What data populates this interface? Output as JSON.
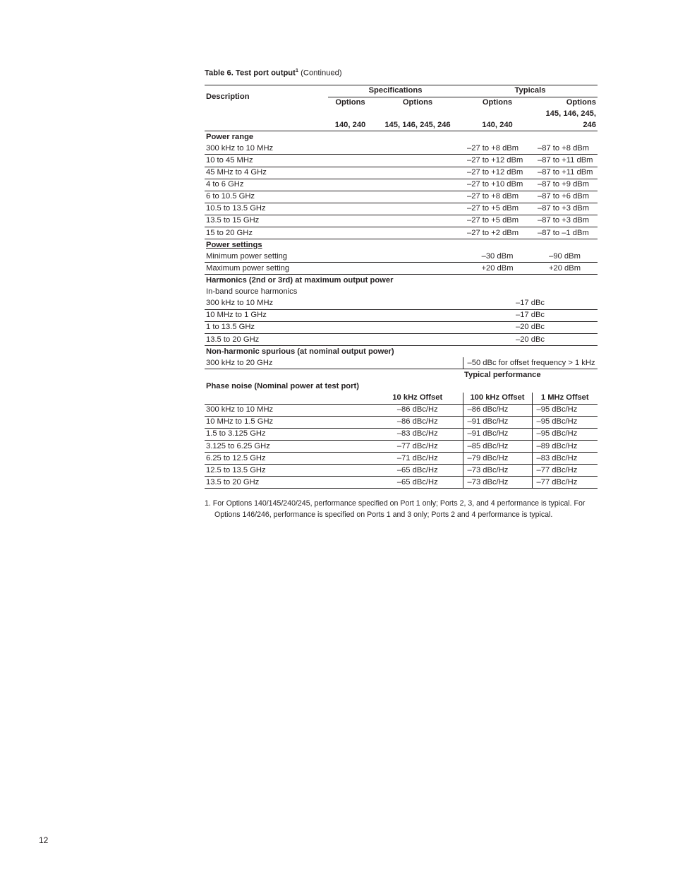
{
  "table_title_prefix": "Table 6. Test port output",
  "table_title_sup": "1",
  "table_title_suffix": " (Continued)",
  "hdr_description": "Description",
  "hdr_specifications": "Specifications",
  "hdr_typicals": "Typicals",
  "hdr_options": "Options",
  "hdr_140_240": "140, 240",
  "hdr_145etc": "145, 146, 245, 246",
  "power_range": "Power range",
  "pr_rows": [
    {
      "label": "300 kHz to 10 MHz",
      "t1": "–27 to +8 dBm",
      "t2": "–87 to +8 dBm"
    },
    {
      "label": "10 to 45 MHz",
      "t1": "–27 to +12 dBm",
      "t2": "–87 to +11 dBm"
    },
    {
      "label": "45 MHz to 4 GHz",
      "t1": "–27 to +12 dBm",
      "t2": "–87 to +11 dBm"
    },
    {
      "label": "4 to 6 GHz",
      "t1": "–27 to +10 dBm",
      "t2": "–87 to +9 dBm"
    },
    {
      "label": "6 to 10.5 GHz",
      "t1": "–27 to +8 dBm",
      "t2": "–87 to +6 dBm"
    },
    {
      "label": "10.5 to 13.5 GHz",
      "t1": "–27 to +5 dBm",
      "t2": "–87 to +3 dBm"
    },
    {
      "label": "13.5 to 15 GHz",
      "t1": "–27 to +5 dBm",
      "t2": "–87 to +3 dBm"
    },
    {
      "label": "15 to 20 GHz",
      "t1": "–27 to +2 dBm",
      "t2": "–87 to –1 dBm"
    }
  ],
  "power_settings": "Power settings",
  "ps_rows": [
    {
      "label": "Minimum power setting",
      "t1": "–30 dBm",
      "t2": "–90 dBm"
    },
    {
      "label": "Maximum power setting",
      "t1": "+20 dBm",
      "t2": "+20 dBm"
    }
  ],
  "harmonics_title": "Harmonics (2nd or 3rd) at maximum output power",
  "harmonics_sub": "In-band source harmonics",
  "harm_rows": [
    {
      "label": "300 kHz to 10 MHz",
      "val": "–17 dBc"
    },
    {
      "label": "10 MHz to 1 GHz",
      "val": "–17 dBc"
    },
    {
      "label": "1 to 13.5 GHz",
      "val": "–20 dBc"
    },
    {
      "label": "13.5 to 20 GHz",
      "val": "–20 dBc"
    }
  ],
  "nonharm_title": "Non-harmonic spurious (at nominal output power)",
  "nonharm_row": {
    "label": "300 kHz to 20 GHz",
    "val": "–50 dBc for offset frequency > 1 kHz"
  },
  "typical_performance": "Typical performance",
  "phase_noise_title": "Phase noise (Nominal power at test port)",
  "pn_hdr_10k": "10 kHz Offset",
  "pn_hdr_100k": "100 kHz Offset",
  "pn_hdr_1m": "1 MHz Offset",
  "pn_rows": [
    {
      "label": "300 kHz to 10 MHz",
      "c1": "–86 dBc/Hz",
      "c2": "–86 dBc/Hz",
      "c3": "–95 dBc/Hz"
    },
    {
      "label": "10 MHz to 1.5 GHz",
      "c1": "–86 dBc/Hz",
      "c2": "–91 dBc/Hz",
      "c3": "–95 dBc/Hz"
    },
    {
      "label": "1.5  to 3.125 GHz",
      "c1": "–83 dBc/Hz",
      "c2": "–91 dBc/Hz",
      "c3": "–95 dBc/Hz"
    },
    {
      "label": "3.125  to 6.25 GHz",
      "c1": "–77 dBc/Hz",
      "c2": "–85 dBc/Hz",
      "c3": "–89 dBc/Hz"
    },
    {
      "label": "6.25 to 12.5 GHz",
      "c1": "–71 dBc/Hz",
      "c2": "–79 dBc/Hz",
      "c3": "–83 dBc/Hz"
    },
    {
      "label": "12.5 to 13.5 GHz",
      "c1": "–65 dBc/Hz",
      "c2": "–73 dBc/Hz",
      "c3": "–77 dBc/Hz"
    },
    {
      "label": "13.5 to 20 GHz",
      "c1": "–65 dBc/Hz",
      "c2": "–73 dBc/Hz",
      "c3": "–77 dBc/Hz"
    }
  ],
  "footnote": "1.  For Options 140/145/240/245, performance specified on Port 1 only; Ports 2, 3, and 4 performance is typical. For Options 146/246, performance is specified on Ports 1 and 3 only; Ports 2 and 4 performance is typical.",
  "page_number": "12"
}
